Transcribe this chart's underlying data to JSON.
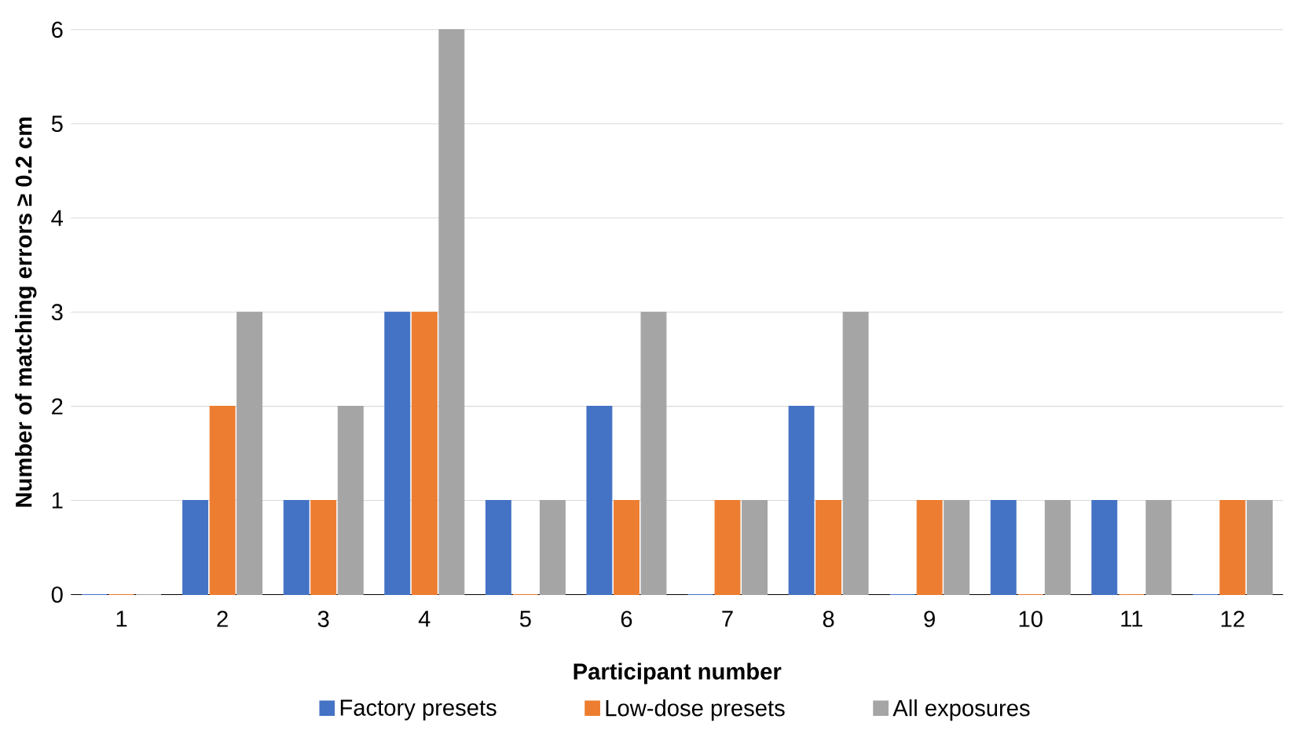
{
  "chart_data": {
    "type": "bar",
    "xlabel": "Participant number",
    "ylabel": "Number of matching  errors ≥ 0.2 cm",
    "categories": [
      "1",
      "2",
      "3",
      "4",
      "5",
      "6",
      "7",
      "8",
      "9",
      "10",
      "11",
      "12"
    ],
    "series": [
      {
        "name": "Factory presets",
        "color": "#4472c4",
        "values": [
          0,
          1,
          1,
          3,
          1,
          2,
          0,
          2,
          0,
          1,
          1,
          0
        ]
      },
      {
        "name": "Low-dose presets",
        "color": "#ed7d31",
        "values": [
          0,
          2,
          1,
          3,
          0,
          1,
          1,
          1,
          1,
          0,
          0,
          1
        ]
      },
      {
        "name": "All exposures",
        "color": "#a5a5a5",
        "values": [
          0,
          3,
          2,
          6,
          1,
          3,
          1,
          3,
          1,
          1,
          1,
          1
        ]
      }
    ],
    "ylim": [
      0,
      6
    ],
    "yticks": [
      0,
      1,
      2,
      3,
      4,
      5,
      6
    ],
    "grid": "y",
    "legend": "bottom"
  }
}
